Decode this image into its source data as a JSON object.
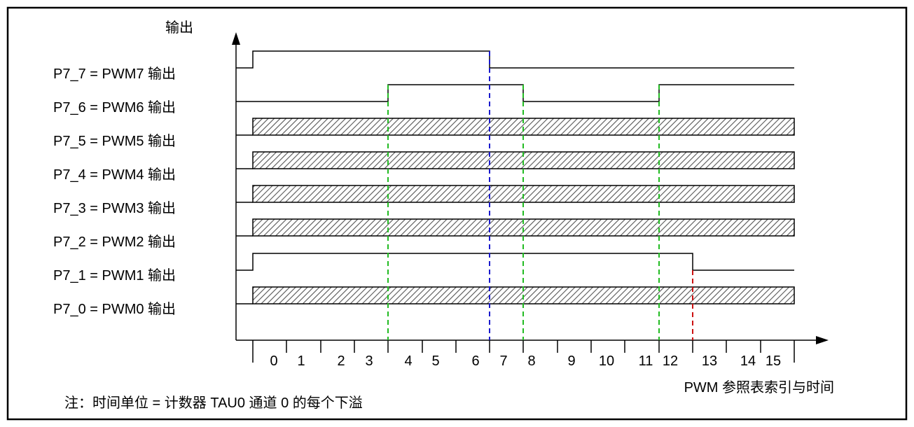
{
  "diagram": {
    "y_axis_label": "输出",
    "x_axis_label": "PWM 参照表索引与时间",
    "note": "注：时间单位 = 计数器 TAU0 通道 0 的每个下溢",
    "signal_labels": [
      "P7_7 = PWM7 输出",
      "P7_6 = PWM6 输出",
      "P7_5 = PWM5 输出",
      "P7_4 = PWM4 输出",
      "P7_3 = PWM3 输出",
      "P7_2 = PWM2 输出",
      "P7_1 = PWM1 输出",
      "P7_0 = PWM0 输出"
    ],
    "tick_labels": [
      "0",
      "1",
      "2",
      "3",
      "4",
      "5",
      "6",
      "7",
      "8",
      "9",
      "10",
      "11",
      "12",
      "13",
      "14",
      "15"
    ],
    "colors": {
      "frame": "#000000",
      "green_marker": "#22bb22",
      "blue_marker": "#1a1acc",
      "red_marker": "#cc1111",
      "hatch": "#555555"
    }
  }
}
